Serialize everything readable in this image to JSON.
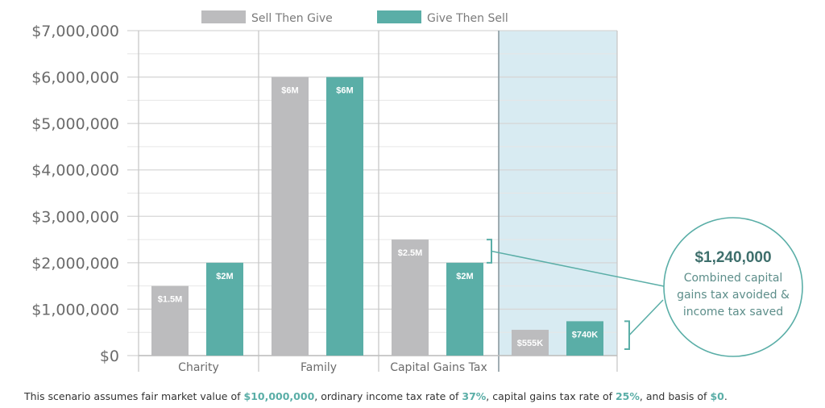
{
  "chart_data": {
    "type": "bar",
    "categories": [
      "Charity",
      "Family",
      "Capital Gains Tax",
      ""
    ],
    "series": [
      {
        "name": "Sell Then Give",
        "values": [
          1500000,
          6000000,
          2500000,
          555000
        ],
        "labels": [
          "$1.5M",
          "$6M",
          "$2.5M",
          "$555K"
        ]
      },
      {
        "name": "Give Then Sell",
        "values": [
          2000000,
          6000000,
          2000000,
          740000
        ],
        "labels": [
          "$2M",
          "$6M",
          "$2M",
          "$740K"
        ]
      }
    ],
    "ylim": [
      0,
      7000000
    ],
    "yticks": [
      0,
      1000000,
      2000000,
      3000000,
      4000000,
      5000000,
      6000000,
      7000000
    ],
    "ytick_labels": [
      "$0",
      "$1,000,000",
      "$2,000,000",
      "$3,000,000",
      "$4,000,000",
      "$5,000,000",
      "$6,000,000",
      "$7,000,000"
    ],
    "grid": true,
    "legend_position": "top-center",
    "highlighted_category_index": 3,
    "callout": {
      "amount": "$1,240,000",
      "lines": [
        "Combined capital",
        "gains tax avoided &",
        "income tax saved"
      ]
    }
  },
  "colors": {
    "sell_then_give": "#bcbcbe",
    "give_then_sell": "#5aaea7",
    "highlight_fill": "#d8ebf2",
    "grid": "#d6d6d6",
    "callout_border": "#5aaea7"
  },
  "footnote": {
    "prefix": "This scenario assumes fair market value of ",
    "fmv": "$10,000,000",
    "mid1": ", ordinary income tax rate of ",
    "income_rate": "37%",
    "mid2": ", capital gains tax rate of ",
    "cg_rate": "25%",
    "mid3": ", and basis of ",
    "basis": "$0",
    "suffix": "."
  }
}
